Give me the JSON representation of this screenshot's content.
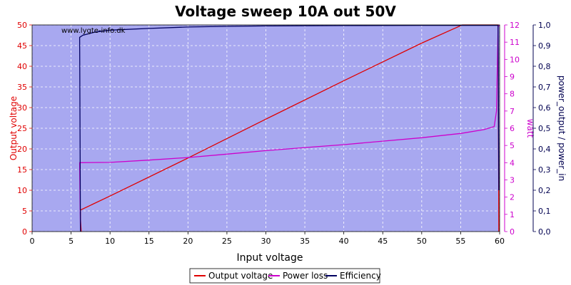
{
  "chart_data": {
    "type": "line",
    "title": "Voltage sweep 10A out 50V",
    "watermark": "www.lygte-info.dk",
    "xlabel": "Input voltage",
    "x_axis": {
      "range": [
        0,
        60
      ],
      "ticks": [
        0,
        5,
        10,
        15,
        20,
        25,
        30,
        35,
        40,
        45,
        50,
        55,
        60
      ]
    },
    "y_axes": {
      "left": {
        "label": "Output voltage",
        "range": [
          0,
          50
        ],
        "ticks": [
          0,
          5,
          10,
          15,
          20,
          25,
          30,
          35,
          40,
          45,
          50
        ],
        "color": "#e00000"
      },
      "right1": {
        "label": "watt",
        "range": [
          0,
          12
        ],
        "ticks": [
          0,
          1,
          2,
          3,
          4,
          5,
          6,
          7,
          8,
          9,
          10,
          11,
          12
        ],
        "color": "#cc00cc"
      },
      "right2": {
        "label": "power_output / power_in",
        "range": [
          0,
          1
        ],
        "ticks": [
          "0,0",
          "0,1",
          "0,2",
          "0,3",
          "0,4",
          "0,5",
          "0,6",
          "0,7",
          "0,8",
          "0,9",
          "1,0"
        ],
        "tick_values": [
          0,
          0.1,
          0.2,
          0.3,
          0.4,
          0.5,
          0.6,
          0.7,
          0.8,
          0.9,
          1.0
        ],
        "color": "#000050"
      }
    },
    "grid": true,
    "legend": {
      "placement": "bottom-center"
    },
    "series": [
      {
        "name": "Output voltage",
        "axis": "left",
        "color": "#e00000",
        "points": [
          [
            6.3,
            0
          ],
          [
            6.2,
            3
          ],
          [
            6.2,
            5.2
          ],
          [
            10,
            8.6
          ],
          [
            20,
            17.8
          ],
          [
            30,
            27.2
          ],
          [
            40,
            36.5
          ],
          [
            50,
            45.6
          ],
          [
            55.2,
            50
          ],
          [
            59.8,
            50
          ],
          [
            59.9,
            0
          ]
        ]
      },
      {
        "name": "Power loss",
        "axis": "right1",
        "color": "#cc00cc",
        "points": [
          [
            6.2,
            0
          ],
          [
            6.1,
            4.0
          ],
          [
            10,
            4.02
          ],
          [
            15,
            4.15
          ],
          [
            20,
            4.3
          ],
          [
            25,
            4.5
          ],
          [
            30,
            4.7
          ],
          [
            35,
            4.88
          ],
          [
            40,
            5.05
          ],
          [
            45,
            5.25
          ],
          [
            50,
            5.45
          ],
          [
            55,
            5.7
          ],
          [
            58,
            5.92
          ],
          [
            59.3,
            6.1
          ],
          [
            59.6,
            7.0
          ],
          [
            59.8,
            11.9
          ],
          [
            60,
            12
          ]
        ]
      },
      {
        "name": "Efficiency",
        "axis": "right2",
        "color": "#000060",
        "points": [
          [
            6.2,
            0
          ],
          [
            6.1,
            0.94
          ],
          [
            6.5,
            0.95
          ],
          [
            8,
            0.965
          ],
          [
            10,
            0.975
          ],
          [
            15,
            0.983
          ],
          [
            20,
            0.99
          ],
          [
            25,
            0.993
          ],
          [
            30,
            0.995
          ],
          [
            40,
            0.997
          ],
          [
            50,
            0.998
          ],
          [
            59.8,
            0.998
          ],
          [
            59.9,
            0.2
          ]
        ]
      }
    ]
  }
}
